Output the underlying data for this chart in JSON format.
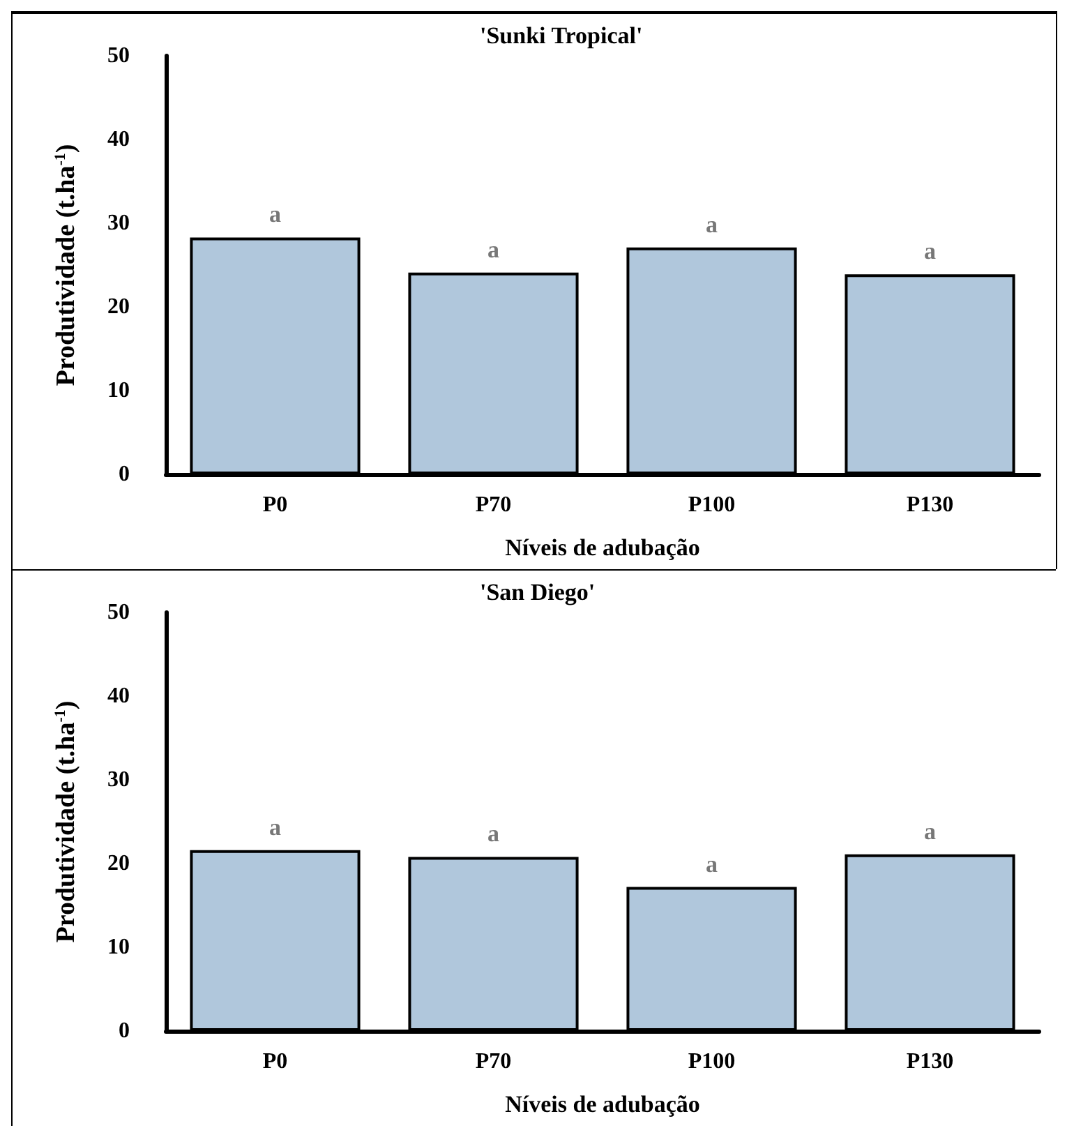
{
  "chart_data": [
    {
      "type": "bar",
      "title": "'Sunki Tropical'",
      "xlabel": "Níveis de adubação",
      "ylabel": "Produtividade (t.ha$^{-1}$)",
      "categories": [
        "P0",
        "P70",
        "P100",
        "P130"
      ],
      "values": [
        28.3,
        24.1,
        27.1,
        23.9
      ],
      "color": "#b0c7dc",
      "ylim": [
        0,
        50
      ],
      "yticks": [
        0,
        10,
        20,
        30,
        40,
        50
      ],
      "grid": false,
      "annotations": [
        {
          "text": "a",
          "x": "P0",
          "y": 28.3
        },
        {
          "text": "a",
          "x": "P70",
          "y": 24.1
        },
        {
          "text": "a",
          "x": "P100",
          "y": 27.1
        },
        {
          "text": "a",
          "x": "P130",
          "y": 23.9
        }
      ]
    },
    {
      "type": "bar",
      "title": "'San Diego'",
      "xlabel": "Níveis de adubação",
      "ylabel": "Produtividade (t.ha$^{-1}$)",
      "categories": [
        "P0",
        "P70",
        "P100",
        "P130"
      ],
      "values": [
        21.6,
        20.8,
        17.2,
        21.1
      ],
      "color": "#b0c7dc",
      "ylim": [
        0,
        50
      ],
      "yticks": [
        0,
        10,
        20,
        30,
        40,
        50
      ],
      "grid": false,
      "annotations": [
        {
          "text": "a",
          "x": "P0",
          "y": 21.6
        },
        {
          "text": "a",
          "x": "P70",
          "y": 20.8
        },
        {
          "text": "a",
          "x": "P100",
          "y": 17.2
        },
        {
          "text": "a",
          "x": "P130",
          "y": 21.1
        }
      ]
    }
  ]
}
